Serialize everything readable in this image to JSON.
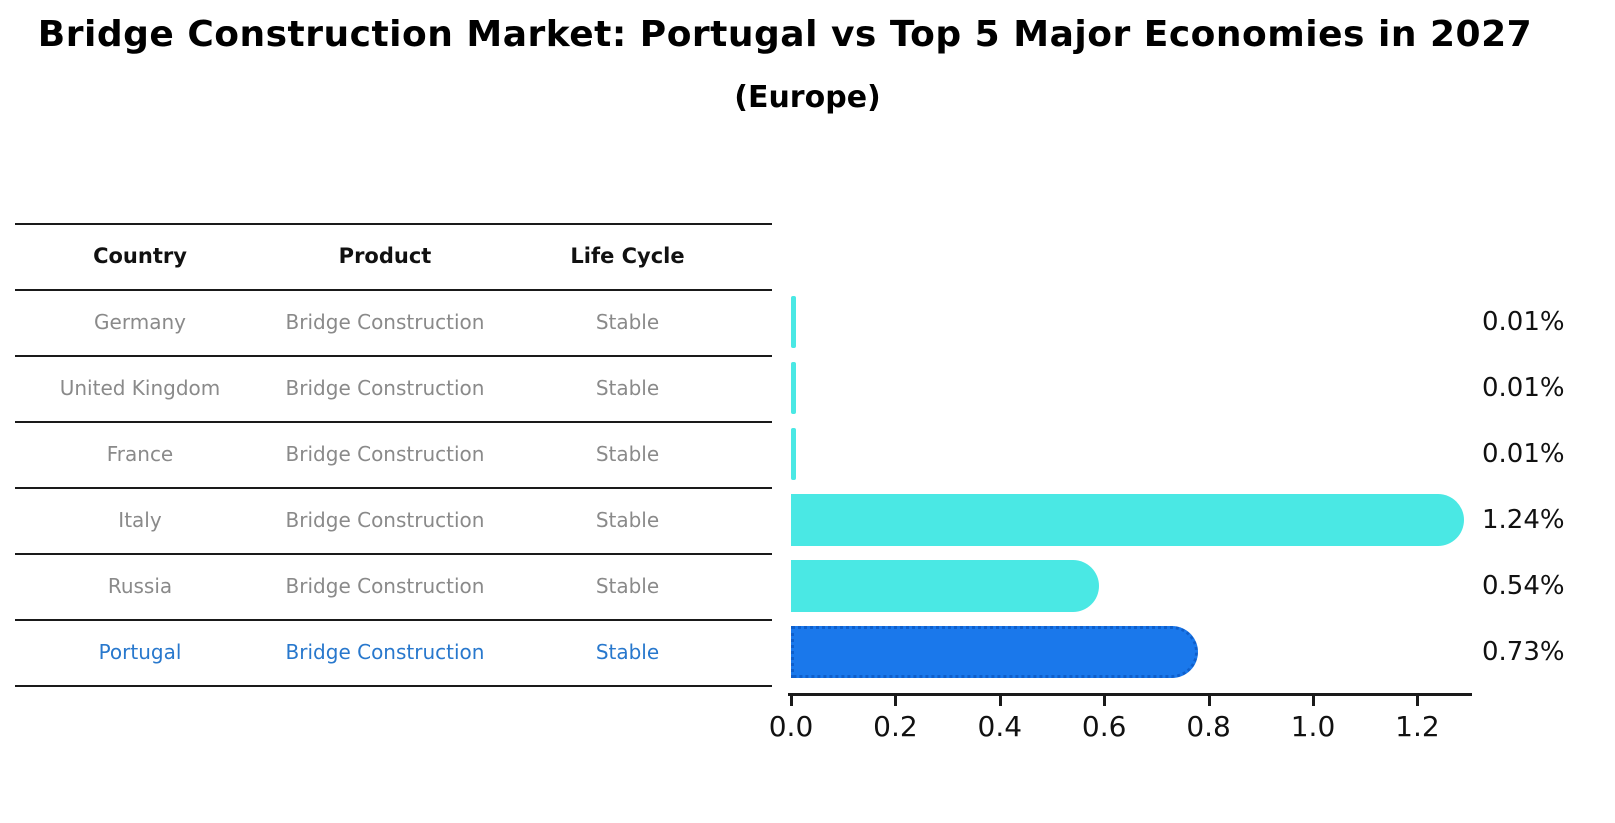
{
  "title": "Bridge Construction Market: Portugal vs Top 5 Major Economies in 2027",
  "subtitle": "(Europe)",
  "table": {
    "columns": [
      "Country",
      "Product",
      "Life Cycle"
    ]
  },
  "rows": [
    {
      "country": "Germany",
      "product": "Bridge Construction",
      "life_cycle": "Stable",
      "value": 0.01,
      "value_label": "0.01%",
      "highlight": false
    },
    {
      "country": "United Kingdom",
      "product": "Bridge Construction",
      "life_cycle": "Stable",
      "value": 0.01,
      "value_label": "0.01%",
      "highlight": false
    },
    {
      "country": "France",
      "product": "Bridge Construction",
      "life_cycle": "Stable",
      "value": 0.01,
      "value_label": "0.01%",
      "highlight": false
    },
    {
      "country": "Italy",
      "product": "Bridge Construction",
      "life_cycle": "Stable",
      "value": 1.24,
      "value_label": "1.24%",
      "highlight": false
    },
    {
      "country": "Russia",
      "product": "Bridge Construction",
      "life_cycle": "Stable",
      "value": 0.54,
      "value_label": "0.54%",
      "highlight": false
    },
    {
      "country": "Portugal",
      "product": "Bridge Construction",
      "life_cycle": "Stable",
      "value": 0.73,
      "value_label": "0.73%",
      "highlight": true
    }
  ],
  "axis": {
    "tick_labels": [
      "0.0",
      "0.2",
      "0.4",
      "0.6",
      "0.8",
      "1.0",
      "1.2"
    ],
    "tick_values": [
      0.0,
      0.2,
      0.4,
      0.6,
      0.8,
      1.0,
      1.2
    ],
    "max": 1.3
  },
  "colors": {
    "bar": "#4ae8e4",
    "highlight_bar": "#1a78eb",
    "highlight_bar_border": "#0e5fcc",
    "highlight_text": "#2878cd",
    "row_text": "#8a8a8a",
    "header_text": "#111111",
    "label_text": "#111111"
  },
  "chart_data": {
    "type": "bar",
    "orientation": "horizontal",
    "title": "Bridge Construction Market: Portugal vs Top 5 Major Economies in 2027",
    "subtitle": "(Europe)",
    "categories": [
      "Germany",
      "United Kingdom",
      "France",
      "Italy",
      "Russia",
      "Portugal"
    ],
    "values": [
      0.01,
      0.01,
      0.01,
      1.24,
      0.54,
      0.73
    ],
    "value_labels": [
      "0.01%",
      "0.01%",
      "0.01%",
      "1.24%",
      "0.54%",
      "0.73%"
    ],
    "xlabel": "",
    "ylabel": "",
    "xlim": [
      0,
      1.3
    ],
    "xticks": [
      0.0,
      0.2,
      0.4,
      0.6,
      0.8,
      1.0,
      1.2
    ],
    "grid": false,
    "legend": "none",
    "highlighted_category": "Portugal",
    "table_columns": [
      "Country",
      "Product",
      "Life Cycle"
    ]
  }
}
